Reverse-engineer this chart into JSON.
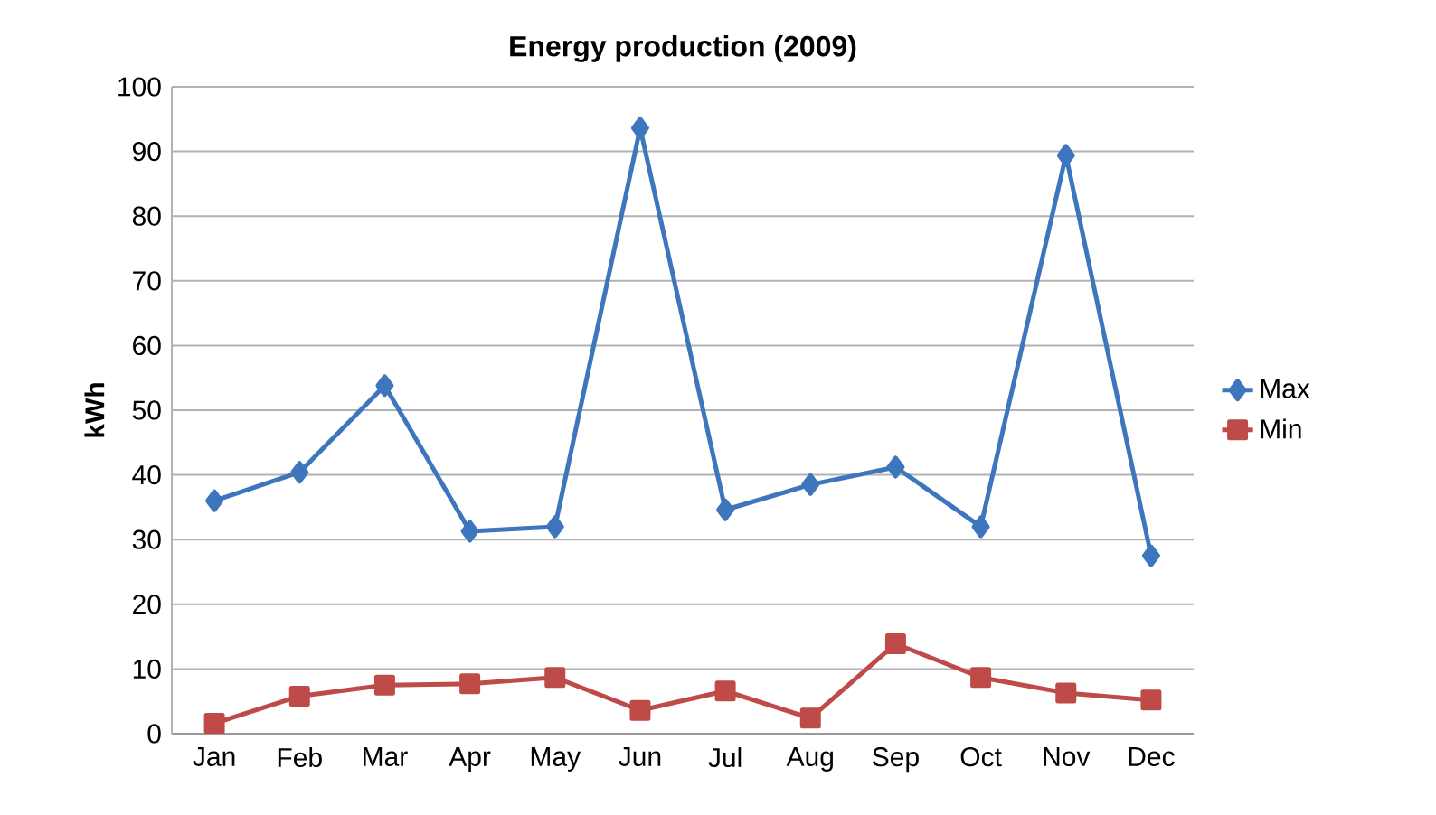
{
  "chart_data": {
    "type": "line",
    "title": "Energy production (2009)",
    "ylabel": "kWh",
    "categories": [
      "Jan",
      "Feb",
      "Mar",
      "Apr",
      "May",
      "Jun",
      "Jul",
      "Aug",
      "Sep",
      "Oct",
      "Nov",
      "Dec"
    ],
    "series": [
      {
        "name": "Max",
        "color": "#3e76bd",
        "marker": "diamond",
        "values": [
          36,
          40.4,
          53.8,
          31.3,
          32,
          93.6,
          34.6,
          38.5,
          41.2,
          32,
          89.4,
          27.5
        ]
      },
      {
        "name": "Min",
        "color": "#be4b48",
        "marker": "square",
        "values": [
          1.6,
          5.8,
          7.5,
          7.7,
          8.7,
          3.6,
          6.6,
          2.4,
          13.9,
          8.7,
          6.3,
          5.2
        ]
      }
    ],
    "ylim": [
      0,
      100
    ],
    "yticks": [
      0,
      10,
      20,
      30,
      40,
      50,
      60,
      70,
      80,
      90,
      100
    ],
    "grid": "y",
    "legend": "right",
    "line_style": "solid"
  }
}
